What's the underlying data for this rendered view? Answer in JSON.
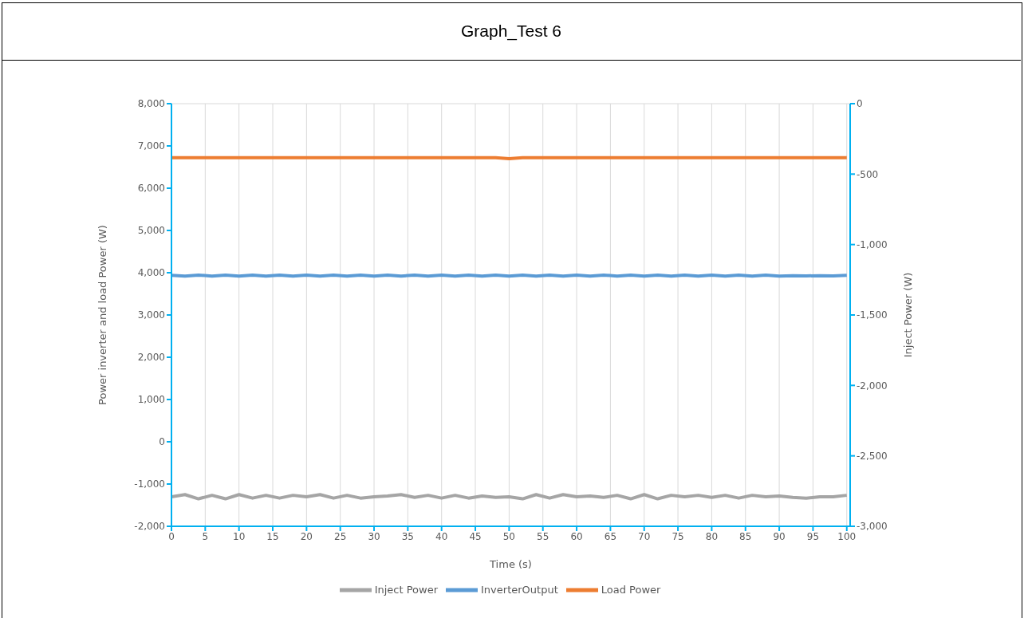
{
  "chart_data": {
    "type": "line",
    "title": "Graph_Test 6",
    "xlabel": "Time (s)",
    "ylabel": "Power inverter and load Power (W)",
    "y2label": "Inject Power (W)",
    "x": [
      0,
      2,
      4,
      6,
      8,
      10,
      12,
      14,
      16,
      18,
      20,
      22,
      24,
      26,
      28,
      30,
      32,
      34,
      36,
      38,
      40,
      42,
      44,
      46,
      48,
      50,
      52,
      54,
      56,
      58,
      60,
      62,
      64,
      66,
      68,
      70,
      72,
      74,
      76,
      78,
      80,
      82,
      84,
      86,
      88,
      90,
      92,
      94,
      96,
      98,
      100
    ],
    "series": [
      {
        "name": "InverterOutput",
        "color": "#5b9bd5",
        "values": [
          3940,
          3920,
          3945,
          3920,
          3945,
          3920,
          3945,
          3920,
          3945,
          3920,
          3945,
          3920,
          3945,
          3920,
          3945,
          3920,
          3945,
          3920,
          3945,
          3920,
          3945,
          3920,
          3945,
          3920,
          3945,
          3920,
          3945,
          3920,
          3945,
          3920,
          3945,
          3920,
          3945,
          3920,
          3945,
          3920,
          3945,
          3920,
          3945,
          3920,
          3945,
          3920,
          3945,
          3920,
          3945,
          3920,
          3930,
          3925,
          3930,
          3925,
          3940
        ]
      },
      {
        "name": "Load Power",
        "color": "#ed7d31",
        "values": [
          6720,
          6720,
          6720,
          6720,
          6720,
          6720,
          6720,
          6720,
          6720,
          6720,
          6720,
          6720,
          6720,
          6720,
          6720,
          6720,
          6720,
          6720,
          6720,
          6720,
          6720,
          6720,
          6720,
          6720,
          6720,
          6700,
          6720,
          6720,
          6720,
          6720,
          6720,
          6720,
          6720,
          6720,
          6720,
          6720,
          6720,
          6720,
          6720,
          6720,
          6720,
          6720,
          6720,
          6720,
          6720,
          6720,
          6720,
          6720,
          6720,
          6720,
          6720
        ]
      },
      {
        "name": "Inject Power",
        "color": "#a5a5a5",
        "axis": "y2",
        "values": [
          -2790,
          -2775,
          -2805,
          -2780,
          -2805,
          -2775,
          -2800,
          -2780,
          -2800,
          -2780,
          -2790,
          -2775,
          -2800,
          -2780,
          -2800,
          -2790,
          -2785,
          -2775,
          -2795,
          -2780,
          -2800,
          -2780,
          -2800,
          -2785,
          -2795,
          -2790,
          -2805,
          -2775,
          -2800,
          -2775,
          -2790,
          -2785,
          -2795,
          -2780,
          -2805,
          -2775,
          -2805,
          -2780,
          -2790,
          -2780,
          -2795,
          -2780,
          -2800,
          -2780,
          -2790,
          -2785,
          -2795,
          -2800,
          -2790,
          -2790,
          -2780
        ]
      }
    ],
    "xlim": [
      0,
      100.5
    ],
    "xticks": [
      0,
      5,
      10,
      15,
      20,
      25,
      30,
      35,
      40,
      45,
      50,
      55,
      60,
      65,
      70,
      75,
      80,
      85,
      90,
      95,
      100
    ],
    "ylim": [
      -2000,
      8000
    ],
    "yticks": [
      {
        "value": -2000,
        "label": "-2,000"
      },
      {
        "value": -1000,
        "label": "-1,000"
      },
      0,
      {
        "value": 1000,
        "label": "1,000"
      },
      {
        "value": 2000,
        "label": "2,000"
      },
      {
        "value": 3000,
        "label": "3,000"
      },
      {
        "value": 4000,
        "label": "4,000"
      },
      {
        "value": 5000,
        "label": "5,000"
      },
      {
        "value": 6000,
        "label": "6,000"
      },
      {
        "value": 7000,
        "label": "7,000"
      },
      {
        "value": 8000,
        "label": "8,000"
      }
    ],
    "y2lim": [
      -3000,
      0
    ],
    "y2ticks": [
      {
        "value": -3000,
        "label": "-3,000"
      },
      {
        "value": -2500,
        "label": "-2,500"
      },
      {
        "value": -2000,
        "label": "-2,000"
      },
      {
        "value": -1500,
        "label": "-1,500"
      },
      {
        "value": -1000,
        "label": "-1,000"
      },
      -500,
      0
    ],
    "grid": true,
    "legend": "bottom",
    "marker": "none",
    "line_style": "solid"
  }
}
